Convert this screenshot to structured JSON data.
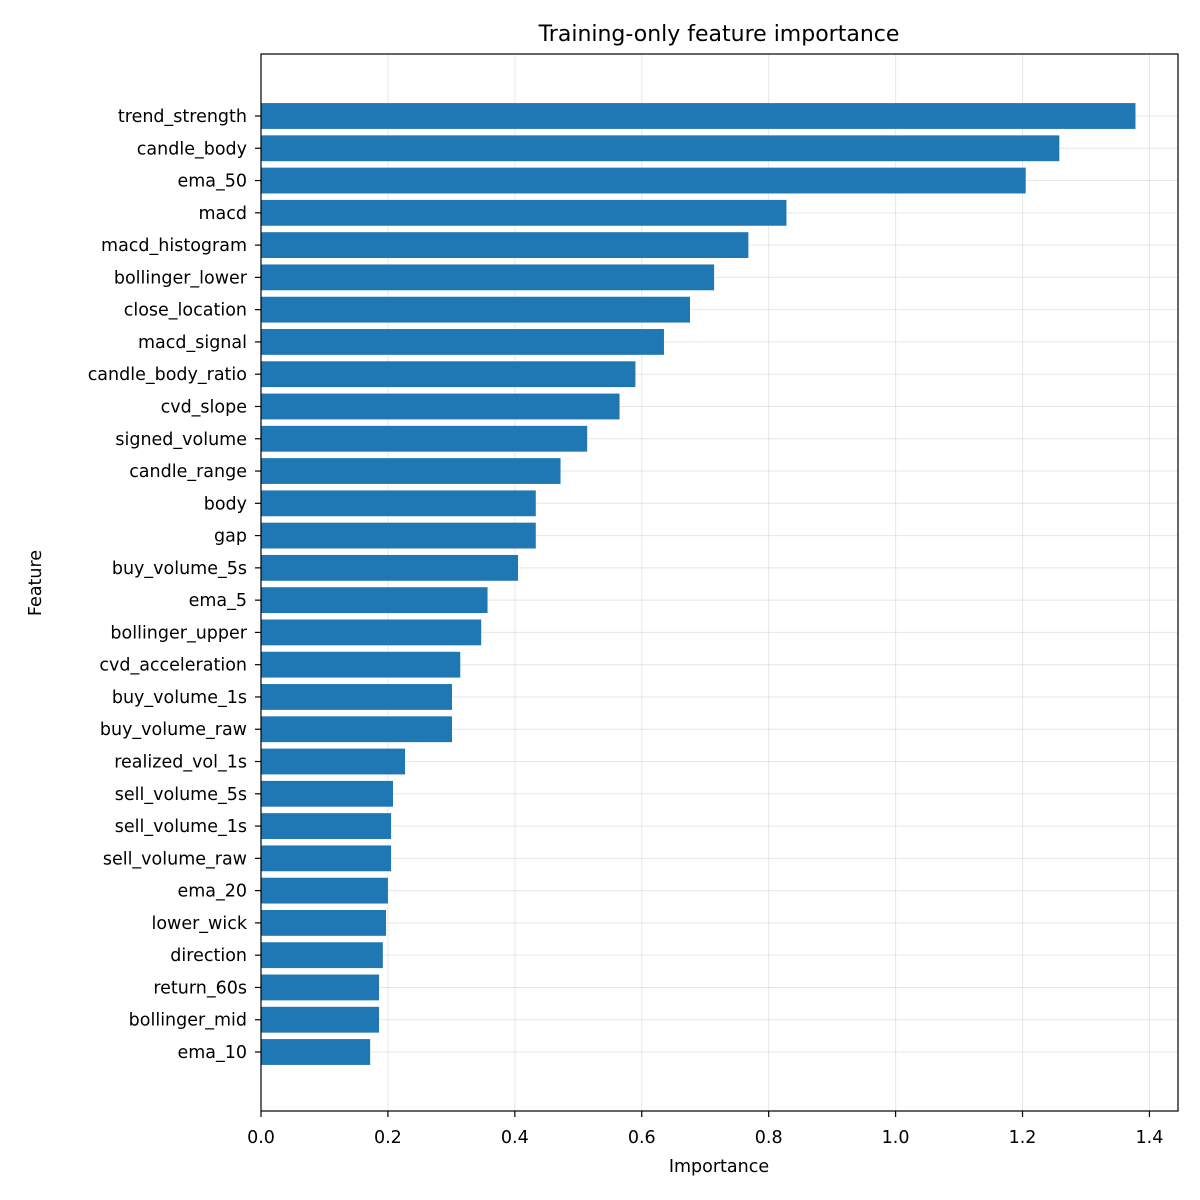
{
  "chart_data": {
    "type": "bar",
    "orientation": "horizontal",
    "title": "Training-only feature importance",
    "xlabel": "Importance",
    "ylabel": "Feature",
    "xlim": [
      0,
      1.445
    ],
    "xticks": [
      "0.0",
      "0.2",
      "0.4",
      "0.6",
      "0.8",
      "1.0",
      "1.2",
      "1.4"
    ],
    "grid": true,
    "bar_color": "#1f77b4",
    "categories": [
      "trend_strength",
      "candle_body",
      "ema_50",
      "macd",
      "macd_histogram",
      "bollinger_lower",
      "close_location",
      "macd_signal",
      "candle_body_ratio",
      "cvd_slope",
      "signed_volume",
      "candle_range",
      "body",
      "gap",
      "buy_volume_5s",
      "ema_5",
      "bollinger_upper",
      "cvd_acceleration",
      "buy_volume_1s",
      "buy_volume_raw",
      "realized_vol_1s",
      "sell_volume_5s",
      "sell_volume_1s",
      "sell_volume_raw",
      "ema_20",
      "lower_wick",
      "direction",
      "return_60s",
      "bollinger_mid",
      "ema_10"
    ],
    "values": [
      1.378,
      1.258,
      1.205,
      0.828,
      0.768,
      0.714,
      0.676,
      0.635,
      0.59,
      0.565,
      0.514,
      0.472,
      0.433,
      0.433,
      0.405,
      0.357,
      0.347,
      0.314,
      0.301,
      0.301,
      0.227,
      0.208,
      0.205,
      0.205,
      0.2,
      0.197,
      0.192,
      0.186,
      0.186,
      0.172
    ]
  }
}
